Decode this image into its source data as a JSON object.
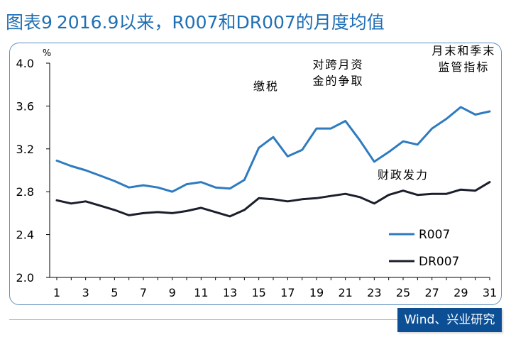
{
  "header": {
    "figure_no": "图表9",
    "title": "2016.9以来，R007和DR007的月度均值"
  },
  "footer": {
    "source": "Wind、兴业研究"
  },
  "colors": {
    "title": "#1f6fb5",
    "r007": "#2e7bbf",
    "dr007": "#1a1f2b",
    "source_bg": "#0d4f95"
  },
  "chart_data": {
    "type": "line",
    "title": "",
    "xlabel": "",
    "ylabel": "%",
    "x": [
      1,
      2,
      3,
      4,
      5,
      6,
      7,
      8,
      9,
      10,
      11,
      12,
      13,
      14,
      15,
      16,
      17,
      18,
      19,
      20,
      21,
      22,
      23,
      24,
      25,
      26,
      27,
      28,
      29,
      30,
      31
    ],
    "xticks": [
      1,
      3,
      5,
      7,
      9,
      11,
      13,
      15,
      17,
      19,
      21,
      23,
      25,
      27,
      29,
      31
    ],
    "xlim": [
      1,
      31
    ],
    "ylim": [
      2.0,
      4.0
    ],
    "yticks": [
      2.0,
      2.4,
      2.8,
      3.2,
      3.6,
      4.0
    ],
    "ytick_labels": [
      "2.0",
      "2.4",
      "2.8",
      "3.2",
      "3.6",
      "4.0"
    ],
    "grid": false,
    "legend": "bottom-right",
    "series": [
      {
        "name": "R007",
        "color": "#2e7bbf",
        "values": [
          3.09,
          3.04,
          3.0,
          2.95,
          2.9,
          2.84,
          2.86,
          2.84,
          2.8,
          2.87,
          2.89,
          2.84,
          2.83,
          2.91,
          3.21,
          3.31,
          3.13,
          3.19,
          3.39,
          3.39,
          3.46,
          3.28,
          3.08,
          3.17,
          3.27,
          3.24,
          3.39,
          3.48,
          3.59,
          3.52,
          3.55
        ]
      },
      {
        "name": "DR007",
        "color": "#1a1f2b",
        "values": [
          2.72,
          2.69,
          2.71,
          2.67,
          2.63,
          2.58,
          2.6,
          2.61,
          2.6,
          2.62,
          2.65,
          2.61,
          2.57,
          2.63,
          2.74,
          2.73,
          2.71,
          2.73,
          2.74,
          2.76,
          2.78,
          2.75,
          2.69,
          2.77,
          2.81,
          2.77,
          2.78,
          2.78,
          2.82,
          2.81,
          2.89
        ]
      }
    ],
    "annotations": [
      {
        "lines": [
          "缴税"
        ],
        "x": 15.5,
        "y": 3.75
      },
      {
        "lines": [
          "对跨月资",
          "金的争取"
        ],
        "x": 20.5,
        "y": 3.95
      },
      {
        "lines": [
          "月末和季末",
          "监管指标"
        ],
        "x": 29.2,
        "y": 4.08
      },
      {
        "lines": [
          "财政发力"
        ],
        "x": 25.0,
        "y": 2.92
      }
    ]
  }
}
